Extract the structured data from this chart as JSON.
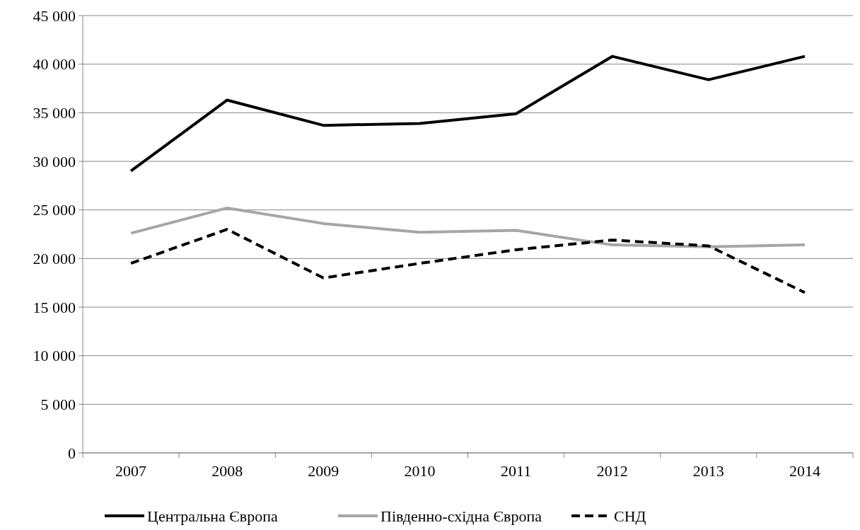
{
  "chart_data": {
    "type": "line",
    "categories": [
      "2007",
      "2008",
      "2009",
      "2010",
      "2011",
      "2012",
      "2013",
      "2014"
    ],
    "series": [
      {
        "name": "Центральна Європа",
        "color": "#000000",
        "line_style": "solid",
        "values": [
          29000,
          36300,
          33700,
          33900,
          34900,
          40800,
          38400,
          40800
        ]
      },
      {
        "name": "Південно-східна Європа",
        "color": "#a6a6a6",
        "line_style": "solid",
        "values": [
          22600,
          25200,
          23600,
          22700,
          22900,
          21400,
          21200,
          21400
        ]
      },
      {
        "name": "СНД",
        "color": "#000000",
        "line_style": "dashed",
        "values": [
          19500,
          23000,
          18000,
          19500,
          20900,
          21900,
          21300,
          16500
        ]
      }
    ],
    "ylim": [
      0,
      45000
    ],
    "yticks": [
      {
        "value": 0,
        "label": "0"
      },
      {
        "value": 5000,
        "label": "5 000"
      },
      {
        "value": 10000,
        "label": "10 000"
      },
      {
        "value": 15000,
        "label": "15 000"
      },
      {
        "value": 20000,
        "label": "20 000"
      },
      {
        "value": 25000,
        "label": "25 000"
      },
      {
        "value": 30000,
        "label": "30 000"
      },
      {
        "value": 35000,
        "label": "35 000"
      },
      {
        "value": 40000,
        "label": "40 000"
      },
      {
        "value": 45000,
        "label": "45 000"
      }
    ],
    "grid": "y",
    "legend": "bottom"
  }
}
